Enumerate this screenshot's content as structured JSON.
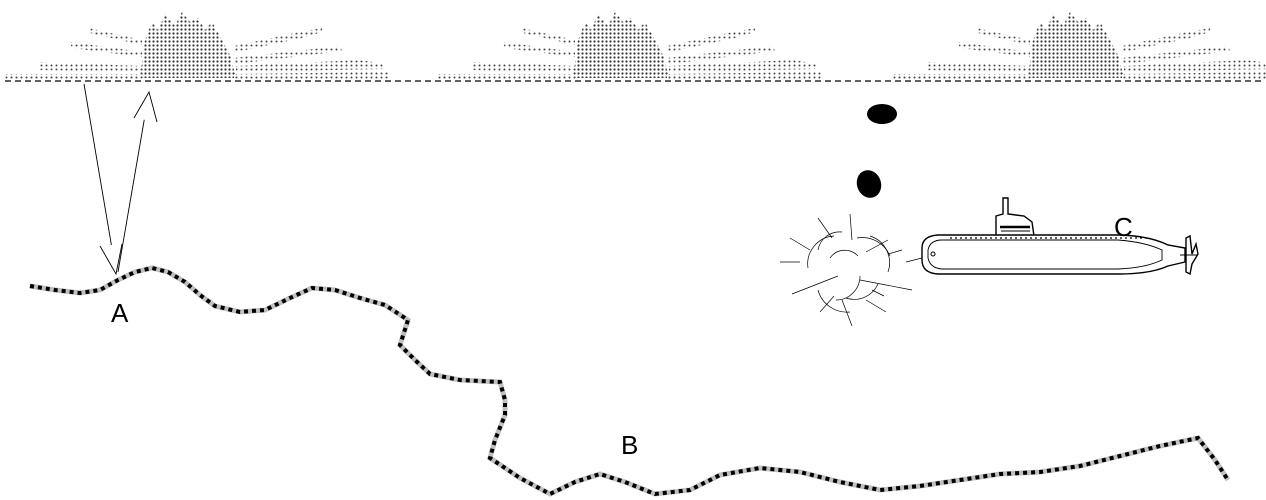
{
  "labels": {
    "a": "A",
    "b": "B",
    "c": "C"
  },
  "colors": {
    "ink": "#000000",
    "background": "#ffffff",
    "cloud": "#555555",
    "seabed_light": "#bfbfbf"
  },
  "icons": {
    "submarine": "submarine-icon",
    "depth_charge": "depth-charge-icon",
    "explosion": "explosion-icon",
    "cloud": "cloud-icon"
  }
}
